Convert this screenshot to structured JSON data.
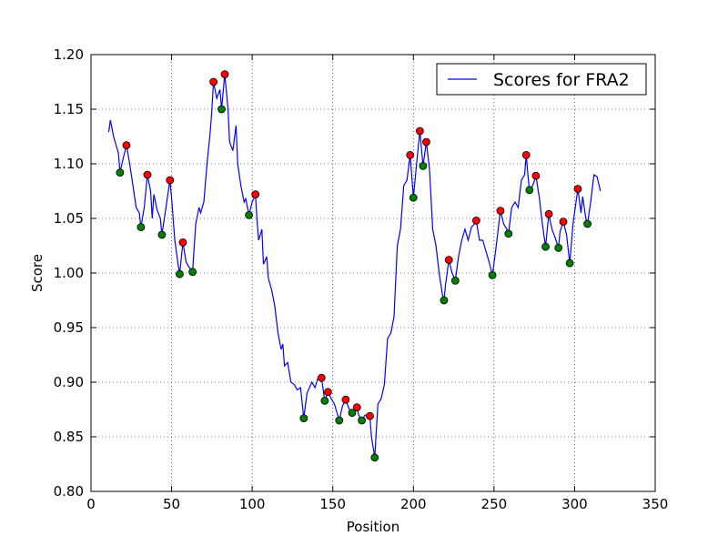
{
  "chart_data": {
    "type": "line",
    "xlabel": "Position",
    "ylabel": "Score",
    "xlim": [
      0,
      350
    ],
    "xticks": [
      0,
      50,
      100,
      150,
      200,
      250,
      300,
      350
    ],
    "ylim": [
      0.8,
      1.2
    ],
    "yticks": [
      {
        "value": 0.8,
        "label": "0.80"
      },
      {
        "value": 0.85,
        "label": "0.85"
      },
      {
        "value": 0.9,
        "label": "0.90"
      },
      {
        "value": 0.95,
        "label": "0.95"
      },
      {
        "value": 1.0,
        "label": "1.00"
      },
      {
        "value": 1.05,
        "label": "1.05"
      },
      {
        "value": 1.1,
        "label": "1.10"
      },
      {
        "value": 1.15,
        "label": "1.15"
      },
      {
        "value": 1.2,
        "label": "1.20"
      }
    ],
    "grid": true,
    "legend": "upper right",
    "series": [
      {
        "name": "Scores for FRA2",
        "color": "#0000ff",
        "mode": "line",
        "x": [
          11,
          12,
          14,
          16,
          17,
          18,
          20,
          22,
          24,
          26,
          28,
          30,
          31,
          33,
          35,
          37,
          38,
          39,
          41,
          43,
          44,
          46,
          48,
          49,
          50,
          52,
          54,
          55,
          57,
          59,
          61,
          63,
          65,
          67,
          68,
          70,
          72,
          74,
          75,
          76,
          78,
          80,
          81,
          83,
          85,
          86,
          88,
          90,
          91,
          93,
          95,
          96,
          98,
          100,
          102,
          103,
          104,
          106,
          107,
          109,
          110,
          112,
          114,
          116,
          118,
          119,
          120,
          122,
          124,
          126,
          128,
          130,
          132,
          134,
          137,
          139,
          141,
          143,
          145,
          147,
          149,
          151,
          154,
          156,
          158,
          160,
          162,
          164,
          165,
          166,
          168,
          170,
          173,
          174,
          176,
          178,
          180,
          182,
          184,
          186,
          188,
          190,
          192,
          194,
          196,
          198,
          200,
          202,
          204,
          206,
          208,
          210,
          212,
          214,
          216,
          218,
          219,
          220,
          222,
          224,
          226,
          228,
          230,
          232,
          234,
          236,
          238,
          239,
          241,
          243,
          245,
          247,
          249,
          251,
          254,
          256,
          258,
          259,
          261,
          263,
          265,
          267,
          269,
          270,
          271,
          272,
          274,
          276,
          278,
          280,
          282,
          284,
          286,
          288,
          290,
          291,
          293,
          295,
          297,
          299,
          302,
          304,
          305,
          307,
          308,
          310,
          312,
          314,
          316
        ],
        "values": [
          1.129,
          1.14,
          1.125,
          1.115,
          1.11,
          1.092,
          1.105,
          1.117,
          1.1,
          1.08,
          1.06,
          1.055,
          1.042,
          1.06,
          1.09,
          1.075,
          1.05,
          1.072,
          1.058,
          1.05,
          1.035,
          1.055,
          1.075,
          1.085,
          1.068,
          1.03,
          1.008,
          0.999,
          1.028,
          1.01,
          1.005,
          1.001,
          1.045,
          1.06,
          1.055,
          1.065,
          1.1,
          1.13,
          1.15,
          1.175,
          1.16,
          1.168,
          1.15,
          1.182,
          1.15,
          1.12,
          1.112,
          1.135,
          1.1,
          1.08,
          1.065,
          1.068,
          1.053,
          1.065,
          1.072,
          1.048,
          1.03,
          1.04,
          1.008,
          1.015,
          0.995,
          0.985,
          0.97,
          0.945,
          0.93,
          0.935,
          0.915,
          0.918,
          0.9,
          0.898,
          0.893,
          0.895,
          0.867,
          0.89,
          0.9,
          0.895,
          0.905,
          0.904,
          0.883,
          0.891,
          0.885,
          0.88,
          0.865,
          0.878,
          0.884,
          0.876,
          0.872,
          0.874,
          0.877,
          0.87,
          0.865,
          0.87,
          0.869,
          0.85,
          0.831,
          0.88,
          0.885,
          0.898,
          0.94,
          0.945,
          0.96,
          1.025,
          1.04,
          1.08,
          1.085,
          1.108,
          1.069,
          1.1,
          1.13,
          1.098,
          1.12,
          1.095,
          1.04,
          1.025,
          1.0,
          0.98,
          0.975,
          0.99,
          1.012,
          1.0,
          0.993,
          1.015,
          1.03,
          1.04,
          1.03,
          1.042,
          1.045,
          1.048,
          1.03,
          1.03,
          1.02,
          1.01,
          0.998,
          1.02,
          1.057,
          1.045,
          1.04,
          1.036,
          1.06,
          1.065,
          1.06,
          1.085,
          1.09,
          1.108,
          1.09,
          1.076,
          1.08,
          1.089,
          1.07,
          1.045,
          1.024,
          1.054,
          1.04,
          1.032,
          1.023,
          1.038,
          1.047,
          1.035,
          1.009,
          1.045,
          1.077,
          1.055,
          1.07,
          1.05,
          1.045,
          1.065,
          1.09,
          1.088,
          1.075
        ]
      },
      {
        "color": "#ff0000",
        "mode": "markers",
        "x": [
          22,
          35,
          49,
          57,
          76,
          83,
          102,
          143,
          147,
          158,
          165,
          173,
          198,
          204,
          208,
          222,
          239,
          254,
          270,
          276,
          284,
          293,
          302
        ],
        "values": [
          1.117,
          1.09,
          1.085,
          1.028,
          1.175,
          1.182,
          1.072,
          0.904,
          0.891,
          0.884,
          0.877,
          0.869,
          1.108,
          1.13,
          1.12,
          1.012,
          1.048,
          1.057,
          1.108,
          1.089,
          1.054,
          1.047,
          1.077
        ]
      },
      {
        "color": "#008000",
        "mode": "markers",
        "x": [
          18,
          31,
          44,
          55,
          63,
          81,
          98,
          132,
          145,
          154,
          162,
          168,
          176,
          200,
          206,
          219,
          226,
          249,
          259,
          272,
          282,
          290,
          297,
          308
        ],
        "values": [
          1.092,
          1.042,
          1.035,
          0.999,
          1.001,
          1.15,
          1.053,
          0.867,
          0.883,
          0.865,
          0.872,
          0.865,
          0.831,
          1.069,
          1.098,
          0.975,
          0.993,
          0.998,
          1.036,
          1.076,
          1.024,
          1.023,
          1.009,
          1.045
        ]
      }
    ]
  }
}
